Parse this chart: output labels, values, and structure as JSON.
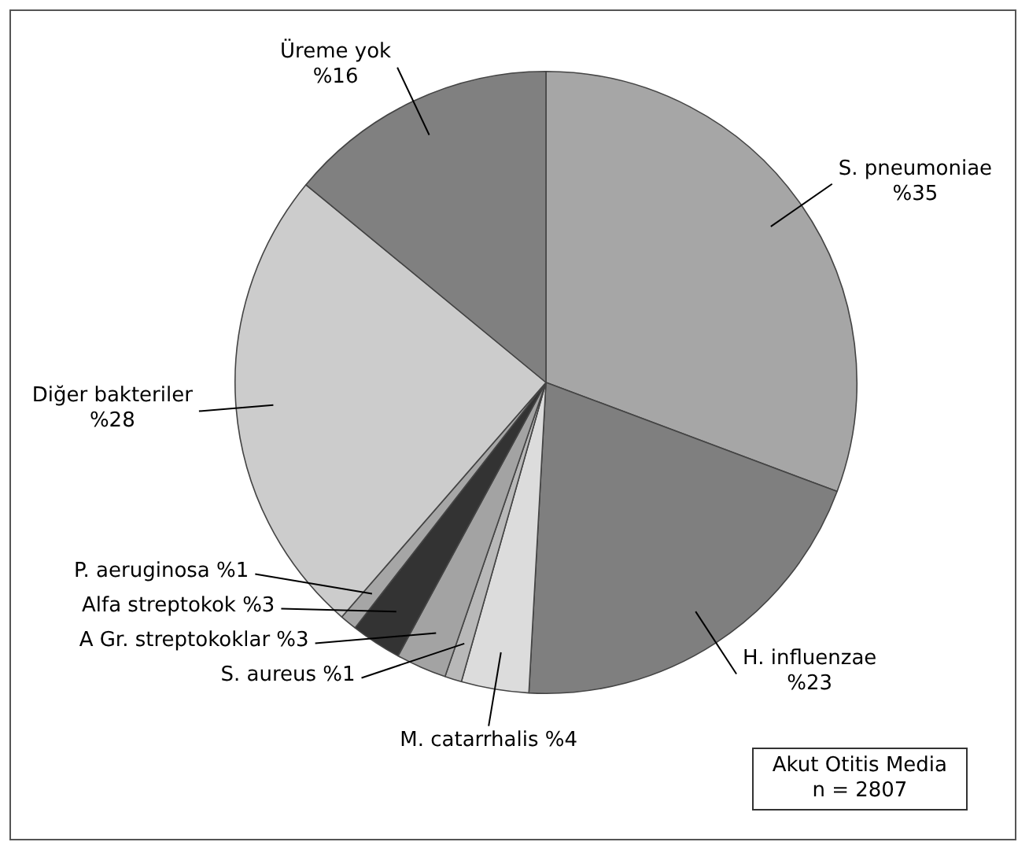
{
  "chart_data": {
    "type": "pie",
    "categories": [
      "S. pneumoniae",
      "H. influenzae",
      "M. catarrhalis",
      "S. aureus",
      "A Gr. streptokoklar",
      "Alfa streptokok",
      "P. aeruginosa",
      "Diğer bakteriler",
      "Üreme yok"
    ],
    "values": [
      35,
      23,
      4,
      1,
      3,
      3,
      1,
      28,
      16
    ],
    "value_labels": [
      "%35",
      "%23",
      "%4",
      "%1",
      "%3",
      "%3",
      "%1",
      "%28",
      "%16"
    ],
    "colors": [
      "#a6a6a6",
      "#7f7f7f",
      "#dcdcdc",
      "#b8b8b8",
      "#a3a3a3",
      "#333333",
      "#a6a6a6",
      "#cccccc",
      "#808080"
    ],
    "annotations": [
      "Akut Otitis Media",
      "n = 2807"
    ]
  }
}
